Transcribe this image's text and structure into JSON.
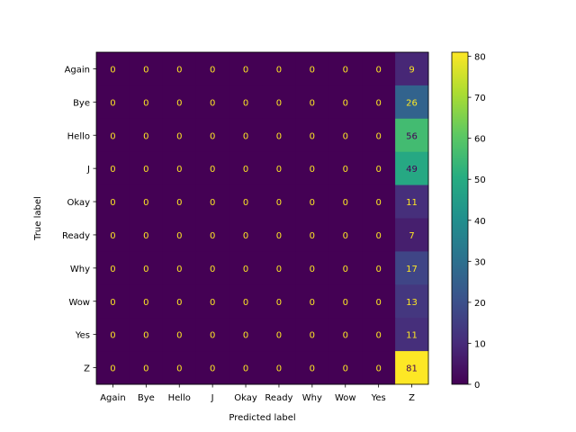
{
  "chart_data": {
    "type": "heatmap",
    "title": "",
    "xlabel": "Predicted label",
    "ylabel": "True label",
    "x_categories": [
      "Again",
      "Bye",
      "Hello",
      "J",
      "Okay",
      "Ready",
      "Why",
      "Wow",
      "Yes",
      "Z"
    ],
    "y_categories": [
      "Again",
      "Bye",
      "Hello",
      "J",
      "Okay",
      "Ready",
      "Why",
      "Wow",
      "Yes",
      "Z"
    ],
    "values": [
      [
        0,
        0,
        0,
        0,
        0,
        0,
        0,
        0,
        0,
        9
      ],
      [
        0,
        0,
        0,
        0,
        0,
        0,
        0,
        0,
        0,
        26
      ],
      [
        0,
        0,
        0,
        0,
        0,
        0,
        0,
        0,
        0,
        56
      ],
      [
        0,
        0,
        0,
        0,
        0,
        0,
        0,
        0,
        0,
        49
      ],
      [
        0,
        0,
        0,
        0,
        0,
        0,
        0,
        0,
        0,
        11
      ],
      [
        0,
        0,
        0,
        0,
        0,
        0,
        0,
        0,
        0,
        7
      ],
      [
        0,
        0,
        0,
        0,
        0,
        0,
        0,
        0,
        0,
        17
      ],
      [
        0,
        0,
        0,
        0,
        0,
        0,
        0,
        0,
        0,
        13
      ],
      [
        0,
        0,
        0,
        0,
        0,
        0,
        0,
        0,
        0,
        11
      ],
      [
        0,
        0,
        0,
        0,
        0,
        0,
        0,
        0,
        0,
        81
      ]
    ],
    "colormap": "viridis",
    "vmin": 0,
    "vmax": 81,
    "colorbar_ticks": [
      0,
      10,
      20,
      30,
      40,
      50,
      60,
      70,
      80
    ],
    "grid": false,
    "legend": "colorbar-right"
  }
}
